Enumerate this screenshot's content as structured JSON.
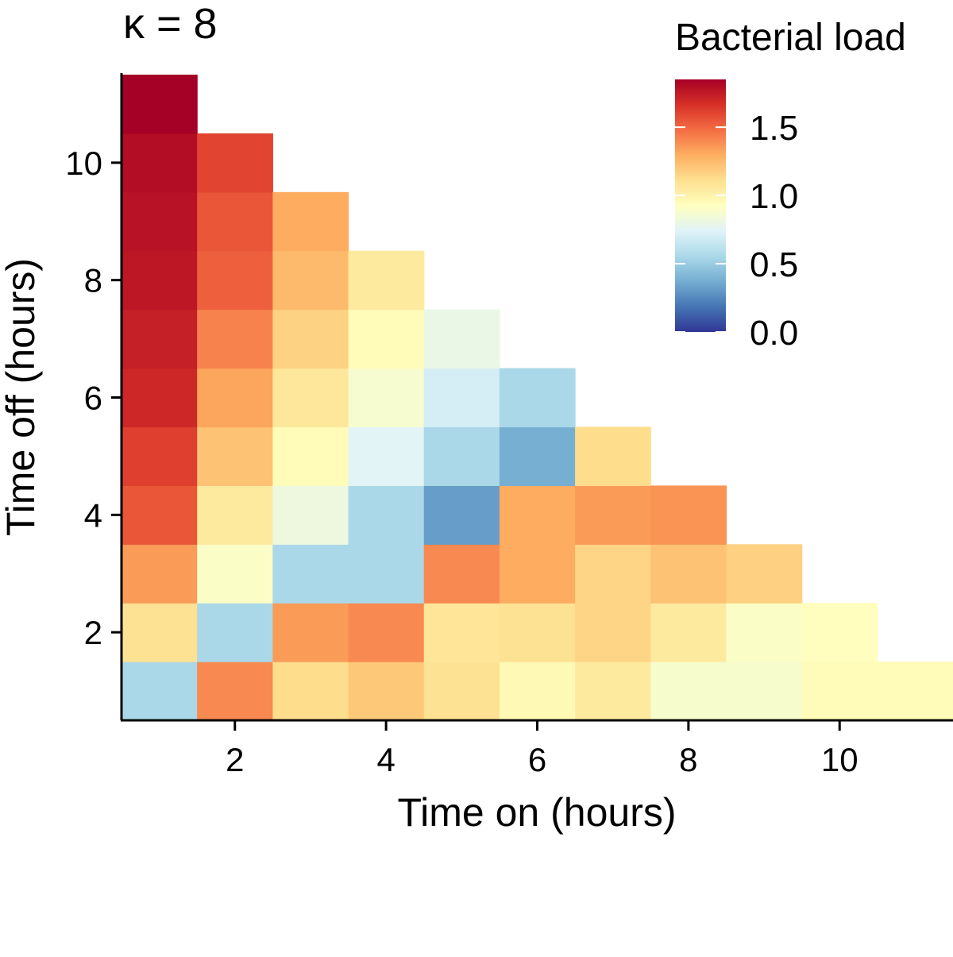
{
  "chart_data": {
    "type": "heatmap",
    "title": "κ = 8",
    "xlabel": "Time on (hours)",
    "ylabel": "Time off (hours)",
    "x_ticks": [
      2,
      4,
      6,
      8,
      10
    ],
    "y_ticks": [
      2,
      4,
      6,
      8,
      10
    ],
    "xlim": [
      0.5,
      11.5
    ],
    "ylim": [
      0.5,
      11.5
    ],
    "legend": {
      "title": "Bacterial load",
      "position": "top-right",
      "range": [
        0,
        1.85
      ],
      "ticks": [
        0.0,
        0.5,
        1.0,
        1.5
      ],
      "tick_labels": [
        "0.0",
        "0.5",
        "1.0",
        "1.5"
      ],
      "colors": [
        "#313695",
        "#4575b4",
        "#74add1",
        "#abd9e9",
        "#e0f3f8",
        "#ffffbf",
        "#fee090",
        "#fdae61",
        "#f46d43",
        "#d73027",
        "#a50026"
      ]
    },
    "cells": [
      {
        "x": 1,
        "y": 1,
        "v": 0.55
      },
      {
        "x": 1,
        "y": 2,
        "v": 1.1
      },
      {
        "x": 1,
        "y": 3,
        "v": 1.35
      },
      {
        "x": 1,
        "y": 4,
        "v": 1.55
      },
      {
        "x": 1,
        "y": 5,
        "v": 1.62
      },
      {
        "x": 1,
        "y": 6,
        "v": 1.7
      },
      {
        "x": 1,
        "y": 7,
        "v": 1.73
      },
      {
        "x": 1,
        "y": 8,
        "v": 1.76
      },
      {
        "x": 1,
        "y": 9,
        "v": 1.78
      },
      {
        "x": 1,
        "y": 10,
        "v": 1.8
      },
      {
        "x": 1,
        "y": 11,
        "v": 1.85
      },
      {
        "x": 2,
        "y": 1,
        "v": 1.4
      },
      {
        "x": 2,
        "y": 2,
        "v": 0.55
      },
      {
        "x": 2,
        "y": 3,
        "v": 0.9
      },
      {
        "x": 2,
        "y": 4,
        "v": 1.05
      },
      {
        "x": 2,
        "y": 5,
        "v": 1.22
      },
      {
        "x": 2,
        "y": 6,
        "v": 1.32
      },
      {
        "x": 2,
        "y": 7,
        "v": 1.42
      },
      {
        "x": 2,
        "y": 8,
        "v": 1.52
      },
      {
        "x": 2,
        "y": 9,
        "v": 1.55
      },
      {
        "x": 2,
        "y": 10,
        "v": 1.6
      },
      {
        "x": 3,
        "y": 1,
        "v": 1.12
      },
      {
        "x": 3,
        "y": 2,
        "v": 1.35
      },
      {
        "x": 3,
        "y": 3,
        "v": 0.55
      },
      {
        "x": 3,
        "y": 4,
        "v": 0.82
      },
      {
        "x": 3,
        "y": 5,
        "v": 0.95
      },
      {
        "x": 3,
        "y": 6,
        "v": 1.07
      },
      {
        "x": 3,
        "y": 7,
        "v": 1.16
      },
      {
        "x": 3,
        "y": 8,
        "v": 1.25
      },
      {
        "x": 3,
        "y": 9,
        "v": 1.3
      },
      {
        "x": 4,
        "y": 1,
        "v": 1.2
      },
      {
        "x": 4,
        "y": 2,
        "v": 1.4
      },
      {
        "x": 4,
        "y": 3,
        "v": 0.55
      },
      {
        "x": 4,
        "y": 4,
        "v": 0.55
      },
      {
        "x": 4,
        "y": 5,
        "v": 0.75
      },
      {
        "x": 4,
        "y": 6,
        "v": 0.87
      },
      {
        "x": 4,
        "y": 7,
        "v": 0.95
      },
      {
        "x": 4,
        "y": 8,
        "v": 1.05
      },
      {
        "x": 5,
        "y": 1,
        "v": 1.1
      },
      {
        "x": 5,
        "y": 2,
        "v": 1.08
      },
      {
        "x": 5,
        "y": 3,
        "v": 1.4
      },
      {
        "x": 5,
        "y": 4,
        "v": 0.32
      },
      {
        "x": 5,
        "y": 5,
        "v": 0.55
      },
      {
        "x": 5,
        "y": 6,
        "v": 0.7
      },
      {
        "x": 5,
        "y": 7,
        "v": 0.8
      },
      {
        "x": 6,
        "y": 1,
        "v": 0.96
      },
      {
        "x": 6,
        "y": 2,
        "v": 1.1
      },
      {
        "x": 6,
        "y": 3,
        "v": 1.3
      },
      {
        "x": 6,
        "y": 4,
        "v": 1.3
      },
      {
        "x": 6,
        "y": 5,
        "v": 0.38
      },
      {
        "x": 6,
        "y": 6,
        "v": 0.55
      },
      {
        "x": 7,
        "y": 1,
        "v": 1.05
      },
      {
        "x": 7,
        "y": 2,
        "v": 1.15
      },
      {
        "x": 7,
        "y": 3,
        "v": 1.15
      },
      {
        "x": 7,
        "y": 4,
        "v": 1.35
      },
      {
        "x": 7,
        "y": 5,
        "v": 1.12
      },
      {
        "x": 8,
        "y": 1,
        "v": 0.88
      },
      {
        "x": 8,
        "y": 2,
        "v": 1.05
      },
      {
        "x": 8,
        "y": 3,
        "v": 1.22
      },
      {
        "x": 8,
        "y": 4,
        "v": 1.37
      },
      {
        "x": 9,
        "y": 1,
        "v": 0.88
      },
      {
        "x": 9,
        "y": 2,
        "v": 0.9
      },
      {
        "x": 9,
        "y": 3,
        "v": 1.17
      },
      {
        "x": 10,
        "y": 1,
        "v": 0.95
      },
      {
        "x": 10,
        "y": 2,
        "v": 0.93
      },
      {
        "x": 11,
        "y": 1,
        "v": 0.95
      }
    ]
  }
}
